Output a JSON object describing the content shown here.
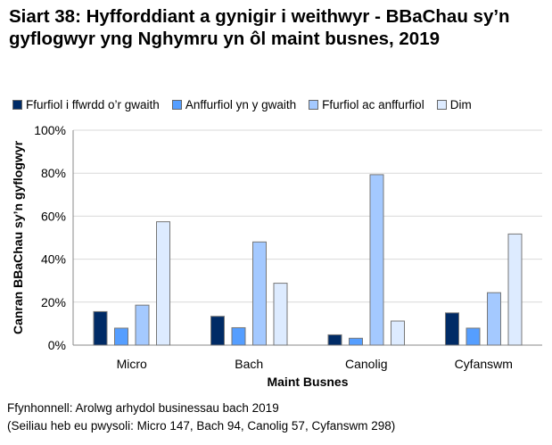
{
  "title": "Siart 38: Hyfforddiant a gynigir i weithwyr - BBaChau sy’n gyflogwyr yng Nghymru yn ôl maint busnes, 2019",
  "source": "Ffynhonnell: Arolwg arhydol businessau bach 2019",
  "note": "(Seiliau heb eu pwysoli: Micro 147, Bach 94, Canolig 57, Cyfanswm 298)",
  "chart_data": {
    "type": "bar",
    "title": "Siart 38: Hyfforddiant a gynigir i weithwyr - BBaChau sy’n gyflogwyr yng Nghymru yn ôl maint busnes, 2019",
    "xlabel": "Maint Busnes",
    "ylabel": "Canran BBaChau sy’n gyflogwyr",
    "ylim": [
      0,
      100
    ],
    "yticks": [
      "0%",
      "20%",
      "40%",
      "60%",
      "80%",
      "100%"
    ],
    "grid": true,
    "legend": "top",
    "categories": [
      "Micro",
      "Bach",
      "Canolig",
      "Cyfanswm"
    ],
    "series": [
      {
        "name": "Ffurfiol i ffwrdd o’r gwaith",
        "color": "#002b66",
        "values": [
          15.6,
          13.4,
          4.8,
          15.0
        ]
      },
      {
        "name": "Anffurfiol yn y gwaith",
        "color": "#559eff",
        "values": [
          7.9,
          8.1,
          3.2,
          7.9
        ]
      },
      {
        "name": "Ffurfiol ac anffurfiol",
        "color": "#a4c9ff",
        "values": [
          18.6,
          48.0,
          79.3,
          24.4
        ]
      },
      {
        "name": "Dim",
        "color": "#ddebff",
        "values": [
          57.4,
          28.8,
          11.2,
          51.7
        ]
      }
    ]
  }
}
